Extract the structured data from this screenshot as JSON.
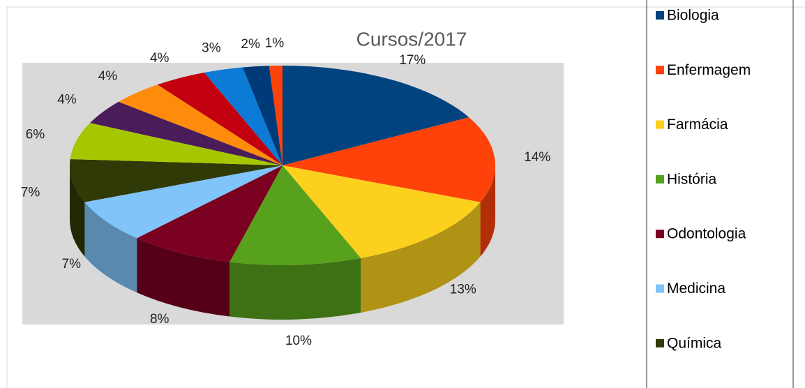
{
  "chart_data": {
    "type": "pie",
    "title": "Cursos/2017",
    "categories": [
      "Biologia",
      "Enfermagem",
      "Farmácia",
      "História",
      "Odontologia",
      "Medicina",
      "Química",
      null,
      null,
      null,
      null,
      null,
      null,
      null
    ],
    "values": [
      17,
      14,
      13,
      10,
      8,
      7,
      7,
      6,
      4,
      4,
      4,
      3,
      2,
      1
    ],
    "value_labels": [
      "17%",
      "14%",
      "13%",
      "10%",
      "8%",
      "7%",
      "7%",
      "6%",
      "4%",
      "4%",
      "4%",
      "3%",
      "2%",
      "1%"
    ],
    "colors": [
      "#00437e",
      "#fe4209",
      "#fbd11d",
      "#57a11d",
      "#7b0022",
      "#7fc4fa",
      "#2f3a06",
      "#a6c700",
      "#4b1c5a",
      "#fe8c0a",
      "#c2000f",
      "#0b7bd5",
      "#003a78",
      "#fe4209"
    ],
    "legend": "right"
  }
}
